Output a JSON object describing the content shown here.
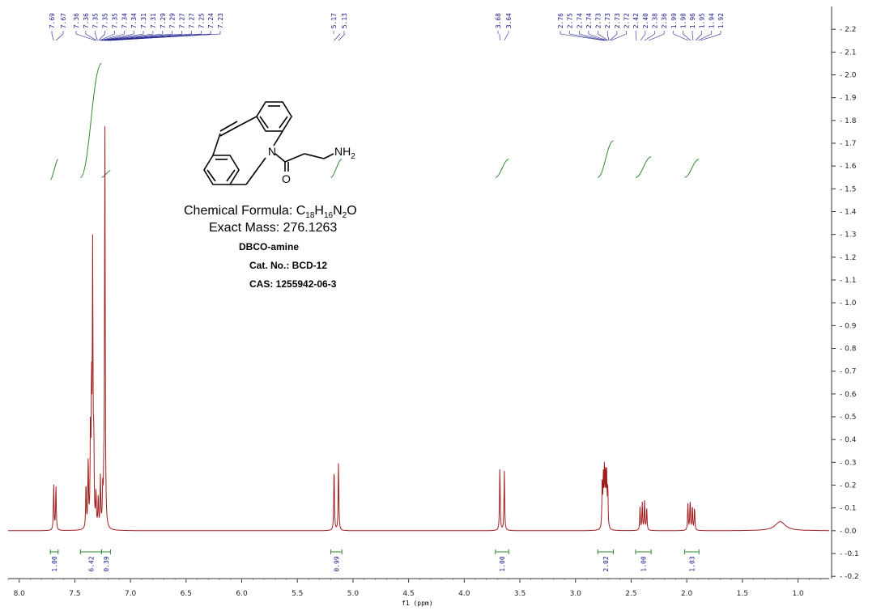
{
  "chart_data": {
    "type": "line",
    "xlabel": "f1 (ppm)",
    "x_reversed": true,
    "xlim": [
      8.1,
      0.72
    ],
    "ylim": [
      -0.21,
      2.3
    ],
    "x_ticks": [
      "8.0",
      "7.5",
      "7.0",
      "6.5",
      "6.0",
      "5.5",
      "5.0",
      "4.5",
      "4.0",
      "3.5",
      "3.0",
      "2.5",
      "2.0",
      "1.5",
      "1.0"
    ],
    "y_ticks": [
      "2.2",
      "2.1",
      "2.0",
      "1.9",
      "1.8",
      "1.7",
      "1.6",
      "1.5",
      "1.4",
      "1.3",
      "1.2",
      "1.1",
      "1.0",
      "0.9",
      "0.8",
      "0.7",
      "0.6",
      "0.5",
      "0.4",
      "0.3",
      "0.2",
      "0.1",
      "0.0",
      "-0.1",
      "-0.2"
    ],
    "peak_label_groups": [
      {
        "labels": [
          "7.69",
          "7.67"
        ]
      },
      {
        "labels": [
          "7.36",
          "7.36",
          "7.35",
          "7.35",
          "7.35",
          "7.34",
          "7.34",
          "7.31",
          "7.31",
          "7.29",
          "7.29",
          "7.27",
          "7.27",
          "7.25",
          "7.24",
          "7.23"
        ]
      },
      {
        "labels": [
          "5.17",
          "5.13"
        ]
      },
      {
        "labels": [
          "3.68",
          "3.64"
        ]
      },
      {
        "labels": [
          "2.76",
          "2.75",
          "2.74",
          "2.74",
          "2.73",
          "2.73",
          "2.73",
          "2.72",
          "2.42",
          "2.40",
          "2.38",
          "2.36",
          "1.99",
          "1.98",
          "1.96",
          "1.95",
          "1.94",
          "1.92"
        ]
      }
    ],
    "peaks": [
      {
        "ppm": 7.69,
        "h": 0.2
      },
      {
        "ppm": 7.67,
        "h": 0.2
      },
      {
        "ppm": 7.4,
        "h": 0.2
      },
      {
        "ppm": 7.38,
        "h": 0.3
      },
      {
        "ppm": 7.36,
        "h": 0.4
      },
      {
        "ppm": 7.35,
        "h": 0.58
      },
      {
        "ppm": 7.34,
        "h": 1.18
      },
      {
        "ppm": 7.33,
        "h": 0.35
      },
      {
        "ppm": 7.31,
        "h": 0.15
      },
      {
        "ppm": 7.29,
        "h": 0.13
      },
      {
        "ppm": 7.27,
        "h": 0.22
      },
      {
        "ppm": 7.25,
        "h": 0.15
      },
      {
        "ppm": 7.24,
        "h": 0.15
      },
      {
        "ppm": 7.23,
        "h": 1.78
      },
      {
        "ppm": 5.17,
        "h": 0.28
      },
      {
        "ppm": 5.13,
        "h": 0.3
      },
      {
        "ppm": 3.68,
        "h": 0.28
      },
      {
        "ppm": 3.64,
        "h": 0.26
      },
      {
        "ppm": 2.76,
        "h": 0.2
      },
      {
        "ppm": 2.75,
        "h": 0.22
      },
      {
        "ppm": 2.74,
        "h": 0.24
      },
      {
        "ppm": 2.73,
        "h": 0.24
      },
      {
        "ppm": 2.72,
        "h": 0.22
      },
      {
        "ppm": 2.71,
        "h": 0.18
      },
      {
        "ppm": 2.42,
        "h": 0.1
      },
      {
        "ppm": 2.4,
        "h": 0.12
      },
      {
        "ppm": 2.38,
        "h": 0.13
      },
      {
        "ppm": 2.36,
        "h": 0.1
      },
      {
        "ppm": 1.99,
        "h": 0.12
      },
      {
        "ppm": 1.97,
        "h": 0.13
      },
      {
        "ppm": 1.95,
        "h": 0.11
      },
      {
        "ppm": 1.93,
        "h": 0.1
      },
      {
        "ppm": 1.16,
        "h": 0.04,
        "broad": true
      }
    ],
    "integrals": [
      {
        "from": 7.72,
        "to": 7.65,
        "value": "1.00",
        "curve_start": 1.54,
        "curve_end": 1.63
      },
      {
        "from": 7.45,
        "to": 7.26,
        "value": "6.42",
        "curve_start": 1.55,
        "curve_end": 2.05
      },
      {
        "from": 7.26,
        "to": 7.18,
        "value": "0.39",
        "curve_start": 1.55,
        "curve_end": 1.58
      },
      {
        "from": 5.2,
        "to": 5.1,
        "value": "0.99",
        "curve_start": 1.55,
        "curve_end": 1.63
      },
      {
        "from": 3.72,
        "to": 3.6,
        "value": "1.00",
        "curve_start": 1.55,
        "curve_end": 1.63
      },
      {
        "from": 2.8,
        "to": 2.66,
        "value": "2.02",
        "curve_start": 1.55,
        "curve_end": 1.71
      },
      {
        "from": 2.46,
        "to": 2.32,
        "value": "1.00",
        "curve_start": 1.55,
        "curve_end": 1.64
      },
      {
        "from": 2.02,
        "to": 1.89,
        "value": "1.03",
        "curve_start": 1.55,
        "curve_end": 1.63
      }
    ]
  },
  "compound": {
    "formula_prefix": "Chemical Formula: ",
    "f_c": "C",
    "f_c_n": "18",
    "f_h": "H",
    "f_h_n": "16",
    "f_n": "N",
    "f_n_n": "2",
    "f_o": "O",
    "exact_mass": "Exact Mass: 276.1263",
    "name": "DBCO-amine",
    "cat_no": "Cat. No.: BCD-12",
    "cas": "CAS: 1255942-06-3"
  },
  "structure": {
    "n_label": "N",
    "o_label": "O",
    "nh2_label": "NH",
    "nh2_sub": "2"
  },
  "colors": {
    "spectrum": "#a01e1e",
    "integral": "#2d8a2d",
    "peak_label": "#1a1a8c"
  }
}
